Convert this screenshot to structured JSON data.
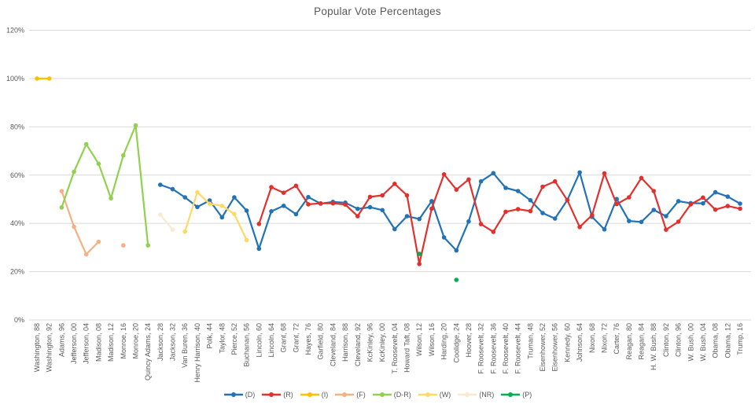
{
  "chart_data": {
    "type": "line",
    "title": "Popular Vote Percentages",
    "xlabel": "",
    "ylabel": "",
    "ylim": [
      0,
      120
    ],
    "ytick_step": 20,
    "yticks": [
      "0%",
      "20%",
      "40%",
      "60%",
      "80%",
      "100%",
      "120%"
    ],
    "grid": true,
    "legend_position": "bottom",
    "style": {
      "text": "#595959",
      "gridline": "#D9D9D9",
      "background": "#FFFFFF"
    },
    "categories": [
      "Washington, 88",
      "Washington, 92",
      "Adams, 96",
      "Jefferson, 00",
      "Jefferson, 04",
      "Madison, 08",
      "Madison, 12",
      "Monroe, 16",
      "Monroe, 20",
      "Quincy Adams, 24",
      "Jackson, 28",
      "Jackson, 32",
      "Van Buren, 36",
      "Henry Harrison, 40",
      "Polk, 44",
      "Taylor, 48",
      "Pierce, 52",
      "Buchanan, 56",
      "Lincoln, 60",
      "Lincoln, 64",
      "Grant, 68",
      "Grant, 72",
      "Hayes, 76",
      "Garfield, 80",
      "Cleveland, 84",
      "Harrison, 88",
      "Cleveland, 92",
      "KcKinley, 96",
      "KcKinley, 00",
      "T. Roosevelt, 04",
      "Howard Taft, 08",
      "Wilson, 12",
      "Wilson, 16",
      "Harding, 20",
      "Coolidge, 24",
      "Hoover, 28",
      "F. Roosevelt, 32",
      "F. Roosevelt, 36",
      "F. Roosevelt, 40",
      "F. Roosevelt, 44",
      "Truman, 48",
      "Eisenhower, 52",
      "Eisenhower, 56",
      "Kennedy, 60",
      "Johnson, 64",
      "Nixon, 68",
      "Nixon, 72",
      "Carter, 76",
      "Reagan, 80",
      "Reagan, 84",
      "H. W. Bush, 88",
      "Clinton, 92",
      "Clinton, 96",
      "W. Bush, 00",
      "W. Bush, 04",
      "Obama, 08",
      "Obama, 12",
      "Trump, 16"
    ],
    "series": [
      {
        "name": "(D)",
        "color": "#2272B6",
        "values": [
          null,
          null,
          null,
          null,
          null,
          null,
          null,
          null,
          null,
          null,
          56.0,
          54.2,
          50.8,
          46.8,
          49.5,
          42.5,
          50.8,
          45.3,
          29.5,
          45.0,
          47.3,
          43.8,
          50.9,
          48.2,
          48.9,
          48.6,
          46.0,
          46.7,
          45.5,
          37.6,
          43.0,
          41.8,
          49.2,
          34.2,
          28.8,
          40.8,
          57.4,
          60.8,
          54.7,
          53.4,
          49.6,
          44.3,
          42.0,
          49.7,
          61.1,
          42.7,
          37.5,
          50.1,
          41.0,
          40.6,
          45.6,
          43.0,
          49.2,
          48.4,
          48.3,
          52.9,
          51.1,
          48.2
        ]
      },
      {
        "name": "(R)",
        "color": "#E2312D",
        "values": [
          null,
          null,
          null,
          null,
          null,
          null,
          null,
          null,
          null,
          null,
          null,
          null,
          null,
          null,
          null,
          null,
          null,
          null,
          39.8,
          55.0,
          52.7,
          55.6,
          47.9,
          48.3,
          48.3,
          47.8,
          43.0,
          51.0,
          51.6,
          56.4,
          51.6,
          23.2,
          46.1,
          60.3,
          54.0,
          58.2,
          39.7,
          36.5,
          44.8,
          45.9,
          45.1,
          55.2,
          57.4,
          49.6,
          38.5,
          43.4,
          60.7,
          48.0,
          50.8,
          58.8,
          53.4,
          37.4,
          40.7,
          47.9,
          50.7,
          45.7,
          47.2,
          46.1
        ]
      },
      {
        "name": "(I)",
        "color": "#FFC000",
        "values": [
          100,
          100,
          null,
          null,
          null,
          null,
          null,
          null,
          null,
          null,
          null,
          null,
          null,
          null,
          null,
          null,
          null,
          null,
          null,
          null,
          null,
          null,
          null,
          null,
          null,
          null,
          null,
          null,
          null,
          null,
          null,
          null,
          null,
          null,
          null,
          null,
          null,
          null,
          null,
          null,
          null,
          null,
          null,
          null,
          null,
          null,
          null,
          null,
          null,
          null,
          null,
          null,
          null,
          null,
          null,
          null,
          null,
          null
        ]
      },
      {
        "name": "(F)",
        "color": "#F4B183",
        "values": [
          null,
          null,
          53.4,
          38.6,
          27.2,
          32.4,
          null,
          30.9,
          null,
          null,
          null,
          null,
          null,
          null,
          null,
          null,
          null,
          null,
          null,
          null,
          null,
          null,
          null,
          null,
          null,
          null,
          null,
          null,
          null,
          null,
          null,
          null,
          null,
          null,
          null,
          null,
          null,
          null,
          null,
          null,
          null,
          null,
          null,
          null,
          null,
          null,
          null,
          null,
          null,
          null,
          null,
          null,
          null,
          null,
          null,
          null,
          null,
          null
        ]
      },
      {
        "name": "(D-R)",
        "color": "#92D050",
        "values": [
          null,
          null,
          46.6,
          61.4,
          72.8,
          64.7,
          50.4,
          68.2,
          80.6,
          30.9,
          null,
          null,
          null,
          null,
          null,
          null,
          null,
          null,
          null,
          null,
          null,
          null,
          null,
          null,
          null,
          null,
          null,
          null,
          null,
          null,
          null,
          null,
          null,
          null,
          null,
          null,
          null,
          null,
          null,
          null,
          null,
          null,
          null,
          null,
          null,
          null,
          null,
          null,
          null,
          null,
          null,
          null,
          null,
          null,
          null,
          null,
          null,
          null
        ]
      },
      {
        "name": "(W)",
        "color": "#FFD966",
        "values": [
          null,
          null,
          null,
          null,
          null,
          null,
          null,
          null,
          null,
          null,
          null,
          null,
          36.6,
          52.9,
          48.1,
          47.3,
          43.9,
          33.1,
          null,
          null,
          null,
          null,
          null,
          null,
          null,
          null,
          null,
          null,
          null,
          null,
          null,
          null,
          null,
          null,
          null,
          null,
          null,
          null,
          null,
          null,
          null,
          null,
          null,
          null,
          null,
          null,
          null,
          null,
          null,
          null,
          null,
          null,
          null,
          null,
          null,
          null,
          null,
          null
        ]
      },
      {
        "name": "(NR)",
        "color": "#FAE9CE",
        "values": [
          null,
          null,
          null,
          null,
          null,
          null,
          null,
          null,
          null,
          null,
          43.6,
          37.4,
          null,
          null,
          null,
          null,
          null,
          null,
          null,
          null,
          null,
          null,
          null,
          null,
          null,
          null,
          null,
          null,
          null,
          null,
          null,
          null,
          null,
          null,
          null,
          null,
          null,
          null,
          null,
          null,
          null,
          null,
          null,
          null,
          null,
          null,
          null,
          null,
          null,
          null,
          null,
          null,
          null,
          null,
          null,
          null,
          null,
          null
        ]
      },
      {
        "name": "(P)",
        "color": "#00B050",
        "values": [
          null,
          null,
          null,
          null,
          null,
          null,
          null,
          null,
          null,
          null,
          null,
          null,
          null,
          null,
          null,
          null,
          null,
          null,
          null,
          null,
          null,
          null,
          null,
          null,
          null,
          null,
          null,
          null,
          null,
          null,
          null,
          27.4,
          null,
          null,
          16.6,
          null,
          null,
          null,
          null,
          null,
          null,
          null,
          null,
          null,
          null,
          null,
          null,
          null,
          null,
          null,
          null,
          null,
          null,
          null,
          null,
          null,
          null,
          null
        ]
      }
    ]
  }
}
